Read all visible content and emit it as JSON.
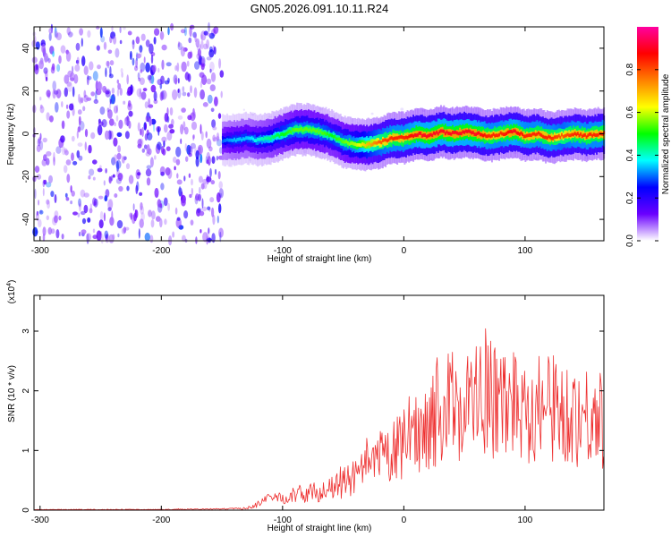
{
  "title": "GN05.2026.091.10.11.R24",
  "chart_data": [
    {
      "type": "heatmap",
      "title": "GN05.2026.091.10.11.R24",
      "xlabel": "Height of straight line (km)",
      "ylabel": "Frequency (Hz)",
      "xlim": [
        -305,
        165
      ],
      "ylim": [
        -50,
        50
      ],
      "x_ticks": [
        -300,
        -200,
        -100,
        0,
        100
      ],
      "y_ticks": [
        -40,
        -20,
        0,
        20,
        40
      ],
      "colorbar": {
        "label": "Normalized spectral amplitude",
        "range": [
          0,
          1
        ],
        "ticks": [
          0.0,
          0.2,
          0.4,
          0.6,
          0.8
        ],
        "colors": [
          "#ffffff",
          "#6a00ff",
          "#0000ff",
          "#00ffff",
          "#00ff00",
          "#ffff00",
          "#ff8000",
          "#ff0000",
          "#ff00a0"
        ]
      },
      "ridge": {
        "x": [
          -150,
          -140,
          -130,
          -120,
          -110,
          -100,
          -90,
          -80,
          -70,
          -60,
          -50,
          -40,
          -30,
          -20,
          -10,
          0,
          10,
          20,
          30,
          40,
          50,
          60,
          70,
          80,
          90,
          100,
          110,
          120,
          130,
          140,
          150,
          160
        ],
        "y": [
          -3,
          -3,
          -2,
          -3,
          -2,
          0,
          2,
          2,
          1,
          -1,
          -4,
          -5,
          -5,
          -4,
          -2,
          -2,
          0,
          -1,
          1,
          0,
          1,
          0,
          -1,
          0,
          1,
          -1,
          0,
          -2,
          -1,
          0,
          -1,
          0
        ],
        "amplitude": [
          0.3,
          0.35,
          0.35,
          0.4,
          0.45,
          0.5,
          0.55,
          0.55,
          0.55,
          0.5,
          0.55,
          0.6,
          0.7,
          0.8,
          0.85,
          0.85,
          0.9,
          0.9,
          0.9,
          0.9,
          0.9,
          0.9,
          0.85,
          0.85,
          0.9,
          0.85,
          0.85,
          0.85,
          0.8,
          0.85,
          0.85,
          0.85
        ]
      },
      "noise_region_x": [
        -305,
        -150
      ]
    },
    {
      "type": "line",
      "xlabel": "Height of straight line (km)",
      "ylabel": "SNR (10 * v/v)",
      "y_scale_label": "(x10",
      "y_scale_exp": "4",
      "y_scale_close": ")",
      "xlim": [
        -305,
        165
      ],
      "ylim": [
        0,
        3.6
      ],
      "x_ticks": [
        -300,
        -200,
        -100,
        0,
        100
      ],
      "y_ticks": [
        0,
        1,
        2,
        3
      ],
      "color": "#ee3030",
      "series": [
        {
          "x": [
            -300,
            -250,
            -200,
            -150,
            -130,
            -120,
            -110,
            -100,
            -90,
            -80,
            -70,
            -60,
            -50,
            -40,
            -30,
            -20,
            -10,
            0,
            10,
            20,
            30,
            40,
            50,
            60,
            70,
            80,
            90,
            100,
            110,
            120,
            130,
            140,
            150,
            160
          ],
          "y": [
            0.01,
            0.01,
            0.01,
            0.02,
            0.03,
            0.1,
            0.2,
            0.22,
            0.25,
            0.3,
            0.3,
            0.35,
            0.45,
            0.55,
            0.7,
            0.85,
            0.95,
            1.1,
            1.3,
            1.5,
            1.7,
            1.75,
            1.8,
            1.85,
            1.85,
            1.8,
            1.85,
            1.75,
            1.75,
            1.7,
            1.65,
            1.6,
            1.6,
            1.55
          ]
        }
      ]
    }
  ]
}
